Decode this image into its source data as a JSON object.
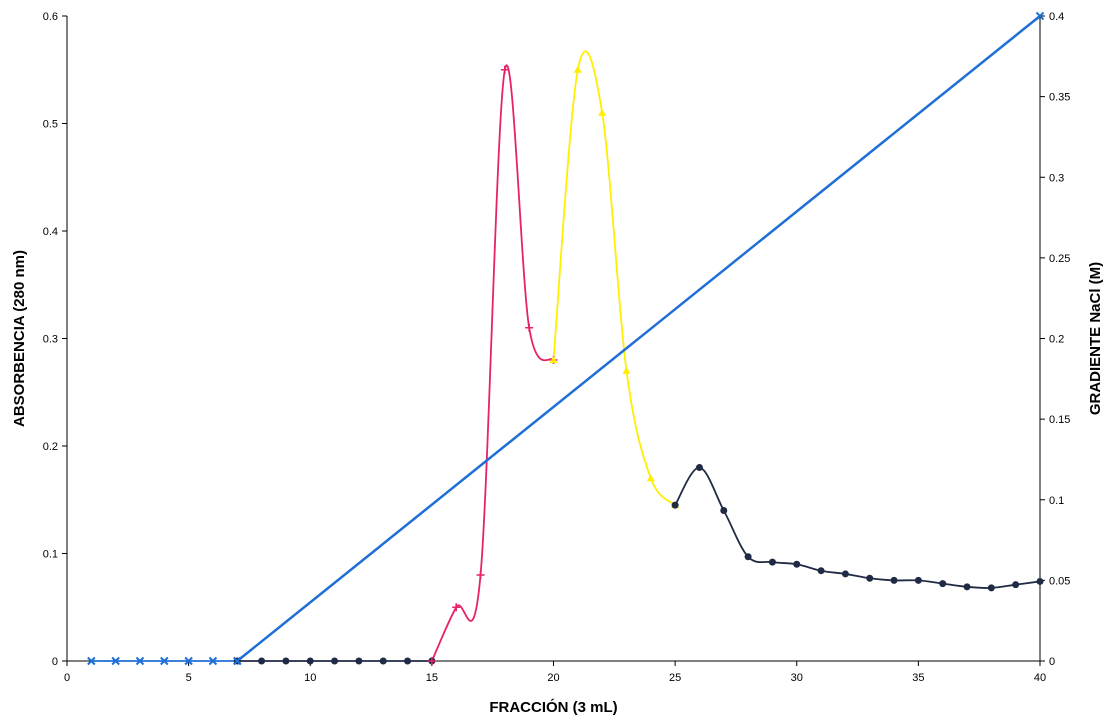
{
  "chart_data": {
    "type": "line",
    "xlabel": "FRACCIÓN (3 mL)",
    "ylabel": "ABSORBENCIA (280 nm)",
    "y2label": "GRADIENTE NaCl (M)",
    "xlim": [
      0,
      40
    ],
    "ylim": [
      0,
      0.6
    ],
    "y2lim": [
      0,
      0.4
    ],
    "x_ticks": [
      "0",
      "5",
      "10",
      "15",
      "20",
      "25",
      "30",
      "35",
      "40"
    ],
    "y_ticks": [
      "0",
      "0.1",
      "0.2",
      "0.3",
      "0.4",
      "0.5",
      "0.6"
    ],
    "y2_ticks": [
      "0",
      "0.05",
      "0.1",
      "0.15",
      "0.2",
      "0.25",
      "0.3",
      "0.35",
      "0.4"
    ],
    "grid": false,
    "legend": "none",
    "series": [
      {
        "color": "#1f6fd6",
        "marker": "x",
        "axis": "left",
        "x": [
          1,
          2,
          3,
          4,
          5,
          6,
          7
        ],
        "y": [
          0,
          0,
          0,
          0,
          0,
          0,
          0
        ]
      },
      {
        "color": "#1f2a44",
        "marker": "circle",
        "axis": "left",
        "x": [
          7,
          8,
          9,
          10,
          11,
          12,
          13,
          14,
          15
        ],
        "y": [
          0,
          0,
          0,
          0,
          0,
          0,
          0,
          0,
          0
        ]
      },
      {
        "color": "#e8216b",
        "marker": "plus",
        "axis": "left",
        "x": [
          15,
          16,
          17,
          18,
          19,
          20
        ],
        "y": [
          0,
          0.05,
          0.08,
          0.55,
          0.31,
          0.28
        ]
      },
      {
        "color": "#ffee00",
        "marker": "triangle",
        "axis": "left",
        "x": [
          20,
          21,
          22,
          23,
          24,
          25
        ],
        "y": [
          0.28,
          0.55,
          0.51,
          0.27,
          0.17,
          0.145
        ]
      },
      {
        "color": "#1f2a44",
        "marker": "circle",
        "axis": "left",
        "x": [
          25,
          26,
          27,
          28,
          29,
          30,
          31,
          32,
          33,
          34,
          35,
          36,
          37,
          38,
          39,
          40
        ],
        "y": [
          0.145,
          0.18,
          0.14,
          0.097,
          0.092,
          0.09,
          0.084,
          0.081,
          0.077,
          0.075,
          0.075,
          0.072,
          0.069,
          0.068,
          0.071,
          0.074
        ]
      },
      {
        "color": "#1f6fd6",
        "marker": "x",
        "axis": "right",
        "x": [
          7,
          40
        ],
        "y": [
          0,
          0.4
        ]
      }
    ]
  }
}
